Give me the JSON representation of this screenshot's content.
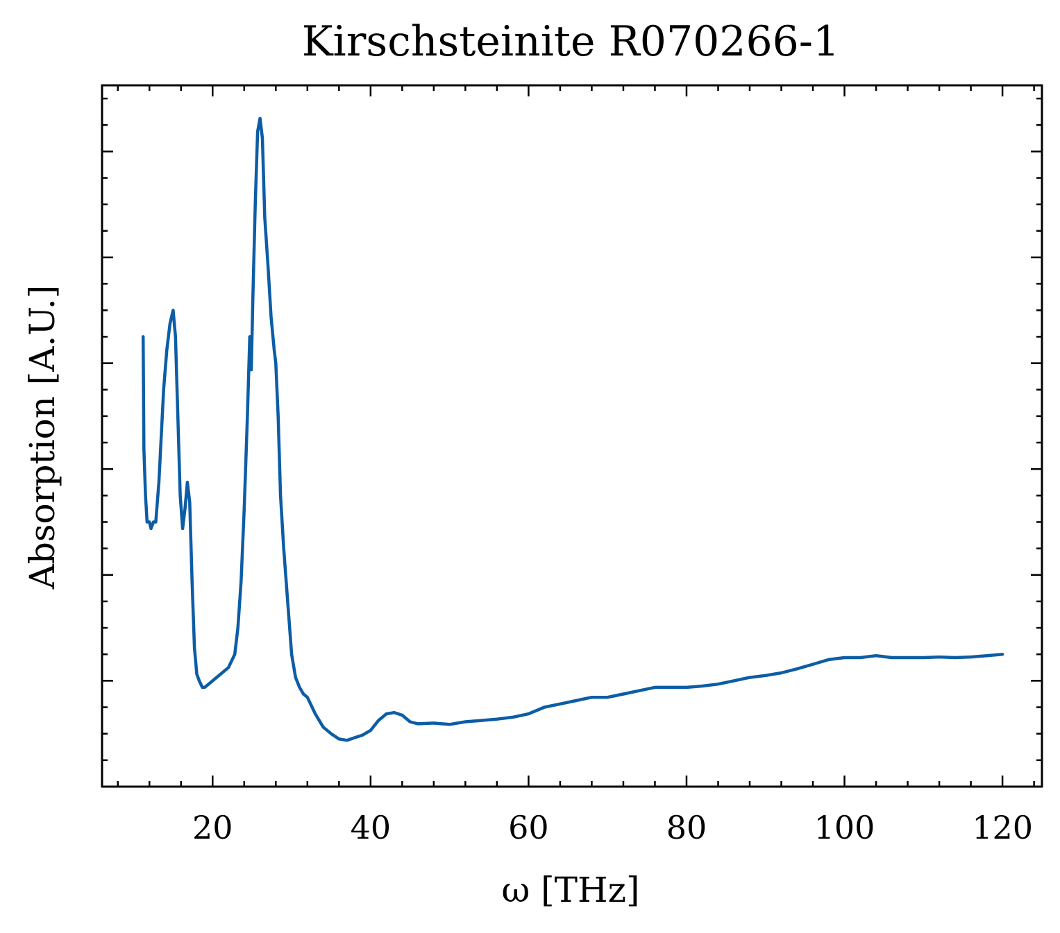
{
  "chart_data": {
    "type": "line",
    "title": "Kirschsteinite R070266-1",
    "xlabel": "ω [THz]",
    "ylabel": "Absorption [A.U.]",
    "xlim": [
      6,
      125
    ],
    "ylim": [
      -0.06,
      1.0
    ],
    "x_ticks": [
      20,
      40,
      60,
      80,
      100,
      120
    ],
    "x_tick_labels": [
      "20",
      "40",
      "60",
      "80",
      "100",
      "120"
    ],
    "x_minor_step": 4,
    "y_ticks": [
      0.1,
      0.26,
      0.42,
      0.58,
      0.74,
      0.9
    ],
    "y_minor_step": 0.04,
    "y_tick_labels_shown": false,
    "grid": false,
    "line_color": "#0C5DA5",
    "series": [
      {
        "x": [
          11.2,
          11.3,
          11.5,
          11.7,
          12.0,
          12.2,
          12.5,
          12.8,
          13.2,
          13.5,
          13.8,
          14.2,
          14.6,
          15.0,
          15.3,
          15.6,
          15.9,
          16.2,
          16.5,
          16.8,
          17.1,
          17.4,
          17.7,
          18.0,
          18.3,
          18.7,
          19.0,
          19.5,
          20.0,
          21.0,
          22.0,
          22.8,
          23.2,
          23.6,
          24.0,
          24.4,
          24.7,
          24.9,
          25.1,
          25.4,
          25.7,
          26.0,
          26.3,
          26.6,
          27.0,
          27.4,
          27.8,
          28.0,
          28.3,
          28.6,
          29.0,
          29.5,
          30.0,
          30.5,
          31.0,
          31.5,
          32.0,
          33.0,
          34.0,
          35.0,
          36.0,
          37.0,
          38.0,
          39.0,
          40.0,
          41.0,
          42.0,
          43.0,
          44.0,
          45.0,
          46.0,
          48.0,
          50.0,
          52.0,
          54.0,
          56.0,
          58.0,
          60.0,
          62.0,
          64.0,
          66.0,
          68.0,
          70.0,
          72.0,
          74.0,
          76.0,
          78.0,
          80.0,
          82.0,
          84.0,
          86.0,
          88.0,
          90.0,
          92.0,
          94.0,
          96.0,
          98.0,
          100.0,
          102.0,
          104.0,
          106.0,
          108.0,
          110.0,
          112.0,
          114.0,
          116.0,
          118.0,
          120.0
        ],
        "y": [
          0.62,
          0.45,
          0.38,
          0.34,
          0.34,
          0.33,
          0.34,
          0.34,
          0.4,
          0.47,
          0.54,
          0.6,
          0.64,
          0.66,
          0.62,
          0.5,
          0.38,
          0.33,
          0.36,
          0.4,
          0.37,
          0.25,
          0.15,
          0.11,
          0.1,
          0.09,
          0.09,
          0.095,
          0.1,
          0.11,
          0.12,
          0.14,
          0.18,
          0.25,
          0.36,
          0.5,
          0.62,
          0.57,
          0.68,
          0.82,
          0.93,
          0.95,
          0.92,
          0.8,
          0.73,
          0.65,
          0.6,
          0.58,
          0.5,
          0.38,
          0.3,
          0.22,
          0.14,
          0.105,
          0.09,
          0.08,
          0.075,
          0.05,
          0.03,
          0.02,
          0.012,
          0.01,
          0.014,
          0.018,
          0.025,
          0.04,
          0.05,
          0.052,
          0.048,
          0.038,
          0.035,
          0.036,
          0.034,
          0.038,
          0.04,
          0.042,
          0.045,
          0.05,
          0.06,
          0.065,
          0.07,
          0.075,
          0.075,
          0.08,
          0.085,
          0.09,
          0.09,
          0.09,
          0.092,
          0.095,
          0.1,
          0.105,
          0.108,
          0.112,
          0.118,
          0.125,
          0.132,
          0.135,
          0.135,
          0.138,
          0.135,
          0.135,
          0.135,
          0.136,
          0.135,
          0.136,
          0.138,
          0.14
        ]
      }
    ]
  }
}
